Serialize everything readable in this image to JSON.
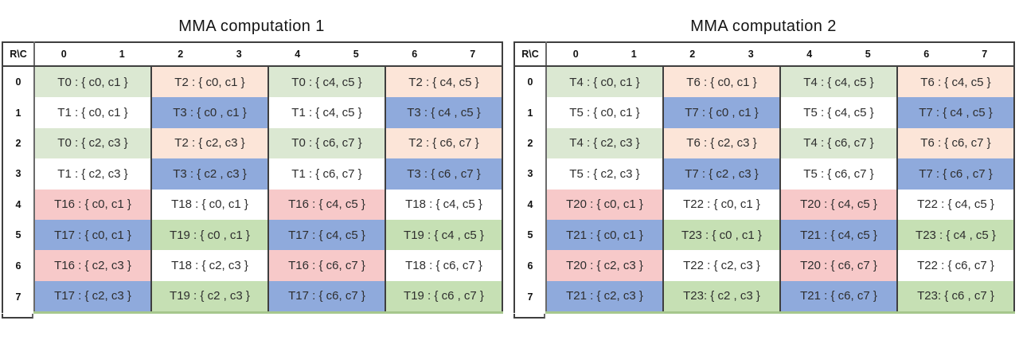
{
  "colors": {
    "pale_green": "#dbe8d2",
    "peach": "#fce5d8",
    "blue": "#8faadc",
    "pink": "#f7c9c9",
    "green": "#c6e0b4",
    "white": "#ffffff",
    "border_dark": "#3f3f3f",
    "border_gray": "#6a6a6a",
    "bottom_green": "#a6c78d",
    "text": "#2e2e2e"
  },
  "tables": [
    {
      "title": "MMA computation 1",
      "corner_label": "R\\C",
      "column_headers": [
        "0",
        "1",
        "2",
        "3",
        "4",
        "5",
        "6",
        "7"
      ],
      "rows": [
        {
          "label": "0",
          "cells": [
            {
              "text": "T0 : { c0, c1 }",
              "color": "pale_green"
            },
            {
              "text": "T2 : { c0, c1 }",
              "color": "peach"
            },
            {
              "text": "T0 : { c4, c5 }",
              "color": "pale_green"
            },
            {
              "text": "T2 : { c4, c5 }",
              "color": "peach"
            }
          ]
        },
        {
          "label": "1",
          "cells": [
            {
              "text": "T1 : { c0, c1 }",
              "color": "white"
            },
            {
              "text": "T3 : { c0 , c1 }",
              "color": "blue"
            },
            {
              "text": "T1 : { c4, c5 }",
              "color": "white"
            },
            {
              "text": "T3 : { c4 , c5 }",
              "color": "blue"
            }
          ]
        },
        {
          "label": "2",
          "cells": [
            {
              "text": "T0 : { c2, c3 }",
              "color": "pale_green"
            },
            {
              "text": "T2 : { c2, c3 }",
              "color": "peach"
            },
            {
              "text": "T0 : { c6, c7 }",
              "color": "pale_green"
            },
            {
              "text": "T2 : { c6, c7 }",
              "color": "peach"
            }
          ]
        },
        {
          "label": "3",
          "cells": [
            {
              "text": "T1 : { c2, c3 }",
              "color": "white"
            },
            {
              "text": "T3 : { c2 , c3 }",
              "color": "blue"
            },
            {
              "text": "T1 : { c6, c7 }",
              "color": "white"
            },
            {
              "text": "T3 : { c6 , c7 }",
              "color": "blue"
            }
          ]
        },
        {
          "label": "4",
          "cells": [
            {
              "text": "T16 : { c0, c1 }",
              "color": "pink"
            },
            {
              "text": "T18 : { c0, c1 }",
              "color": "white"
            },
            {
              "text": "T16 : { c4, c5 }",
              "color": "pink"
            },
            {
              "text": "T18 : { c4, c5 }",
              "color": "white"
            }
          ]
        },
        {
          "label": "5",
          "cells": [
            {
              "text": "T17 : { c0, c1 }",
              "color": "blue"
            },
            {
              "text": "T19 : { c0 , c1 }",
              "color": "green"
            },
            {
              "text": "T17 : { c4, c5 }",
              "color": "blue"
            },
            {
              "text": "T19 : { c4 , c5 }",
              "color": "green"
            }
          ]
        },
        {
          "label": "6",
          "cells": [
            {
              "text": "T16 : { c2, c3 }",
              "color": "pink"
            },
            {
              "text": "T18 : { c2, c3 }",
              "color": "white"
            },
            {
              "text": "T16 : { c6, c7 }",
              "color": "pink"
            },
            {
              "text": "T18 : { c6, c7 }",
              "color": "white"
            }
          ]
        },
        {
          "label": "7",
          "cells": [
            {
              "text": "T17 : { c2, c3 }",
              "color": "blue"
            },
            {
              "text": "T19 : { c2 , c3 }",
              "color": "green"
            },
            {
              "text": "T17 : { c6, c7 }",
              "color": "blue"
            },
            {
              "text": "T19 : { c6 , c7 }",
              "color": "green"
            }
          ]
        }
      ]
    },
    {
      "title": "MMA computation 2",
      "corner_label": "R\\C",
      "column_headers": [
        "0",
        "1",
        "2",
        "3",
        "4",
        "5",
        "6",
        "7"
      ],
      "rows": [
        {
          "label": "0",
          "cells": [
            {
              "text": "T4 : { c0, c1 }",
              "color": "pale_green"
            },
            {
              "text": "T6 : { c0, c1 }",
              "color": "peach"
            },
            {
              "text": "T4 : { c4, c5 }",
              "color": "pale_green"
            },
            {
              "text": "T6 : { c4, c5 }",
              "color": "peach"
            }
          ]
        },
        {
          "label": "1",
          "cells": [
            {
              "text": "T5 : { c0, c1 }",
              "color": "white"
            },
            {
              "text": "T7 : { c0 , c1 }",
              "color": "blue"
            },
            {
              "text": "T5 : { c4, c5 }",
              "color": "white"
            },
            {
              "text": "T7 : { c4 , c5 }",
              "color": "blue"
            }
          ]
        },
        {
          "label": "2",
          "cells": [
            {
              "text": "T4 : { c2, c3 }",
              "color": "pale_green"
            },
            {
              "text": "T6 : { c2, c3 }",
              "color": "peach"
            },
            {
              "text": "T4 : { c6, c7 }",
              "color": "pale_green"
            },
            {
              "text": "T6 : { c6, c7 }",
              "color": "peach"
            }
          ]
        },
        {
          "label": "3",
          "cells": [
            {
              "text": "T5 : { c2, c3 }",
              "color": "white"
            },
            {
              "text": "T7 : { c2 , c3 }",
              "color": "blue"
            },
            {
              "text": "T5 : { c6, c7 }",
              "color": "white"
            },
            {
              "text": "T7 : { c6 , c7 }",
              "color": "blue"
            }
          ]
        },
        {
          "label": "4",
          "cells": [
            {
              "text": "T20 : { c0, c1 }",
              "color": "pink"
            },
            {
              "text": "T22 : { c0, c1 }",
              "color": "white"
            },
            {
              "text": "T20 : { c4, c5 }",
              "color": "pink"
            },
            {
              "text": "T22 : { c4, c5 }",
              "color": "white"
            }
          ]
        },
        {
          "label": "5",
          "cells": [
            {
              "text": "T21 : { c0, c1 }",
              "color": "blue"
            },
            {
              "text": "T23 : { c0 , c1 }",
              "color": "green"
            },
            {
              "text": "T21 : { c4, c5 }",
              "color": "blue"
            },
            {
              "text": "T23 : { c4 , c5 }",
              "color": "green"
            }
          ]
        },
        {
          "label": "6",
          "cells": [
            {
              "text": "T20 : { c2, c3 }",
              "color": "pink"
            },
            {
              "text": "T22 : { c2, c3 }",
              "color": "white"
            },
            {
              "text": "T20 : { c6, c7 }",
              "color": "pink"
            },
            {
              "text": "T22 : { c6, c7 }",
              "color": "white"
            }
          ]
        },
        {
          "label": "7",
          "cells": [
            {
              "text": "T21 : { c2, c3 }",
              "color": "blue"
            },
            {
              "text": "T23: { c2 , c3 }",
              "color": "green"
            },
            {
              "text": "T21 : { c6, c7 }",
              "color": "blue"
            },
            {
              "text": "T23: { c6 , c7 }",
              "color": "green"
            }
          ]
        }
      ]
    }
  ]
}
